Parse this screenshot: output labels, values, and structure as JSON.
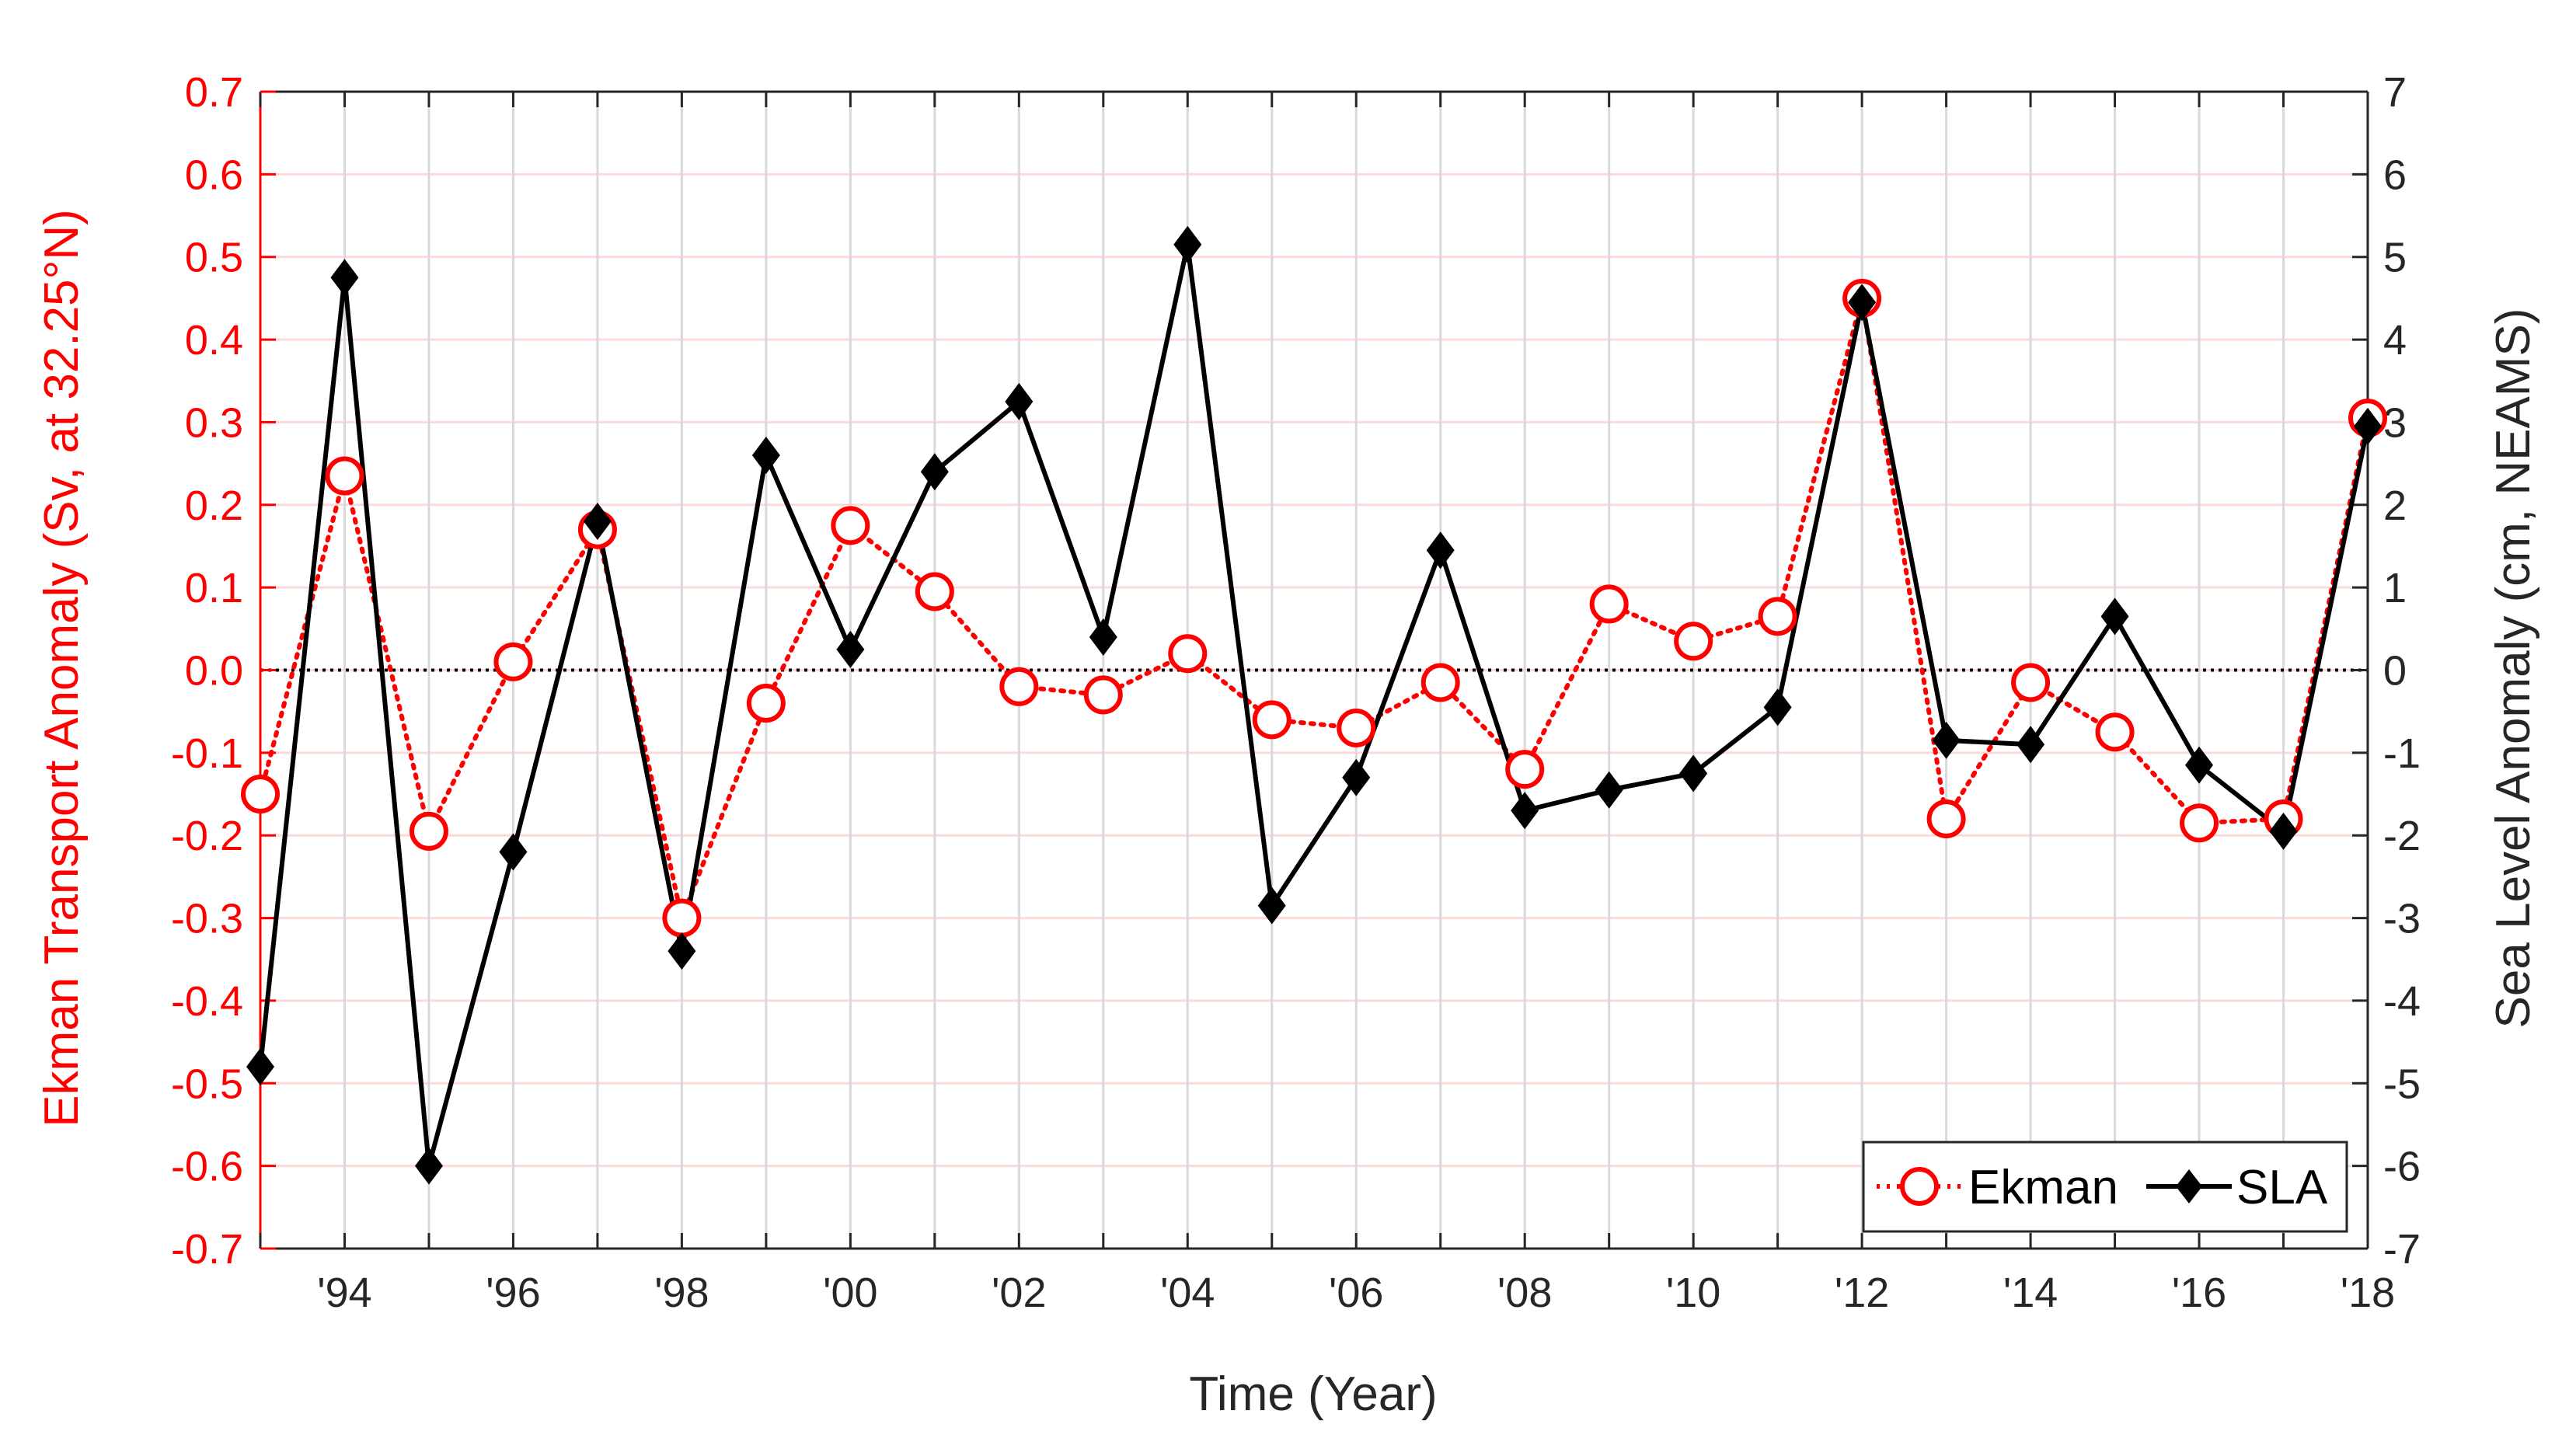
{
  "chart_data": {
    "type": "line",
    "title": "",
    "xlabel": "Time (Year)",
    "ylabel_left": "Ekman Transport Anomaly (Sv, at 32.25°N)",
    "ylabel_right": "Sea Level Anomaly (cm, NEAMS)",
    "xlim": [
      1993,
      2018
    ],
    "ylim_left": [
      -0.7,
      0.7
    ],
    "ylim_right": [
      -7,
      7
    ],
    "grid": true,
    "legend_position": "bottom-right",
    "x_ticks": [
      1994,
      1996,
      1998,
      2000,
      2002,
      2004,
      2006,
      2008,
      2010,
      2012,
      2014,
      2016,
      2018
    ],
    "x_tick_labels": [
      "'94",
      "'96",
      "'98",
      "'00",
      "'02",
      "'04",
      "'06",
      "'08",
      "'10",
      "'12",
      "'14",
      "'16",
      "'18"
    ],
    "y_left_ticks": [
      -0.7,
      -0.6,
      -0.5,
      -0.4,
      -0.3,
      -0.2,
      -0.1,
      0.0,
      0.1,
      0.2,
      0.3,
      0.4,
      0.5,
      0.6,
      0.7
    ],
    "y_left_tick_labels": [
      "-0.7",
      "-0.6",
      "-0.5",
      "-0.4",
      "-0.3",
      "-0.2",
      "-0.1",
      "0.0",
      "0.1",
      "0.2",
      "0.3",
      "0.4",
      "0.5",
      "0.6",
      "0.7"
    ],
    "y_right_ticks": [
      -7,
      -6,
      -5,
      -4,
      -3,
      -2,
      -1,
      0,
      1,
      2,
      3,
      4,
      5,
      6,
      7
    ],
    "y_right_tick_labels": [
      "-7",
      "-6",
      "-5",
      "-4",
      "-3",
      "-2",
      "-1",
      "0",
      "1",
      "2",
      "3",
      "4",
      "5",
      "6",
      "7"
    ],
    "x": [
      1993,
      1994,
      1995,
      1996,
      1997,
      1998,
      1999,
      2000,
      2001,
      2002,
      2003,
      2004,
      2005,
      2006,
      2007,
      2008,
      2009,
      2010,
      2011,
      2012,
      2013,
      2014,
      2015,
      2016,
      2017,
      2018
    ],
    "series": [
      {
        "name": "Ekman",
        "axis": "left",
        "color": "#ff0000",
        "line_style": "dotted",
        "marker": "circle-open",
        "values": [
          -0.15,
          0.235,
          -0.195,
          0.01,
          0.17,
          -0.3,
          -0.04,
          0.175,
          0.095,
          -0.02,
          -0.03,
          0.02,
          -0.06,
          -0.07,
          -0.015,
          -0.12,
          0.08,
          0.035,
          0.065,
          0.45,
          -0.18,
          -0.015,
          -0.075,
          -0.185,
          -0.18,
          0.305
        ]
      },
      {
        "name": "SLA",
        "axis": "right",
        "color": "#000000",
        "line_style": "solid",
        "marker": "diamond-filled",
        "values": [
          -4.8,
          4.75,
          -6.0,
          -2.2,
          1.8,
          -3.4,
          2.6,
          0.25,
          2.4,
          3.25,
          0.4,
          5.15,
          -2.85,
          -1.3,
          1.45,
          -1.7,
          -1.45,
          -1.25,
          -0.45,
          4.45,
          -0.85,
          -0.9,
          0.65,
          -1.15,
          -1.95,
          2.95
        ]
      }
    ],
    "zero_line": {
      "style": "dotted",
      "value": 0
    },
    "colors": {
      "left_axis": "#ff0000",
      "right_axis": "#000000",
      "grid_major": "#d9d9d9",
      "grid_minor": "#ffd9d9"
    }
  }
}
